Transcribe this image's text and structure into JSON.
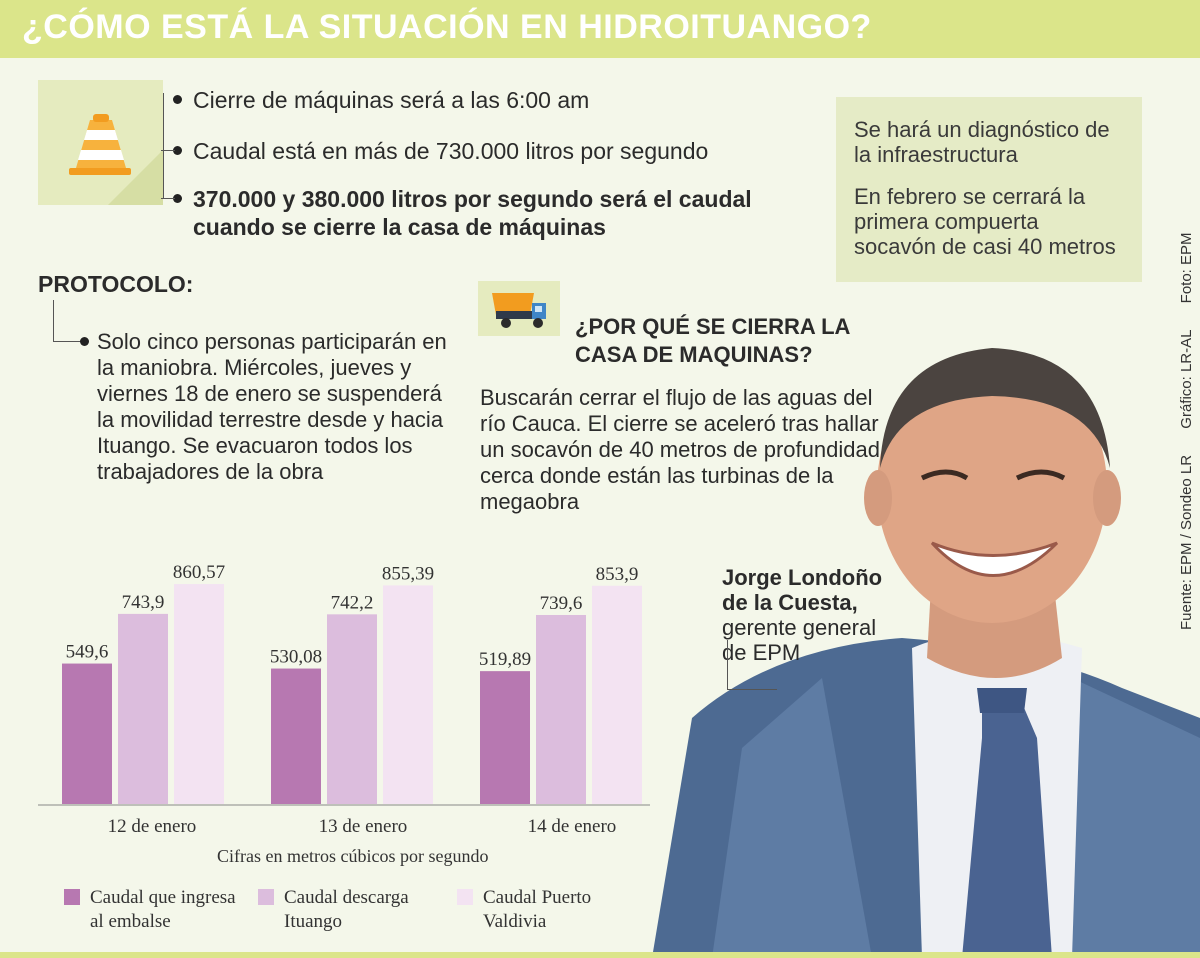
{
  "title": "¿CÓMO ESTÁ LA SITUACIÓN EN HIDROITUANGO?",
  "bullets": [
    "Cierre de máquinas será a las 6:00 am",
    "Caudal está en más de 730.000 litros por segundo",
    "370.000 y 380.000 litros por segundo será el caudal cuando se cierre la casa de máquinas"
  ],
  "note": {
    "p1": "Se hará un diagnóstico de la infraestructura",
    "p2": "En febrero se cerrará la primera compuerta socavón de casi 40 metros"
  },
  "protocol": {
    "title": "PROTOCOLO:",
    "text": "Solo cinco personas participarán en la maniobra. Miércoles, jueves y viernes 18 de enero se suspenderá la movilidad terrestre desde y hacia Ituango. Se evacuaron todos los trabajadores de la obra"
  },
  "why": {
    "title": "¿POR QUÉ SE CIERRA LA CASA DE MAQUINAS?",
    "text": "Buscarán cerrar el flujo de las aguas del río Cauca. El cierre se aceleró tras hallar un socavón de 40 metros de profundidad cerca donde están las turbinas de la megaobra"
  },
  "person": {
    "name_line1": "Jorge Londoño",
    "name_line2": "de la Cuesta,",
    "role_line1": "gerente general",
    "role_line2": "de EPM"
  },
  "credits": {
    "source": "Fuente: EPM / Sondeo LR",
    "graphic": "Gráfico: LR-AL",
    "photo": "Foto: EPM"
  },
  "colors": {
    "title_bar": "#dbe58a",
    "series1": "#b778b1",
    "series2": "#dcbddd",
    "series3": "#f3e3f2"
  },
  "icons": {
    "cone": "traffic-cone-icon",
    "truck": "dump-truck-icon"
  },
  "chart_data": {
    "type": "bar",
    "categories": [
      "12 de enero",
      "13 de enero",
      "14 de enero"
    ],
    "series": [
      {
        "name": "Caudal que ingresa al embalse",
        "values": [
          549.6,
          530.08,
          519.89
        ],
        "labels": [
          "549,6",
          "530,08",
          "519,89"
        ]
      },
      {
        "name": "Caudal descarga Ituango",
        "values": [
          743.9,
          742.2,
          739.6
        ],
        "labels": [
          "743,9",
          "742,2",
          "739,6"
        ]
      },
      {
        "name": "Caudal Puerto Valdivia",
        "values": [
          860.57,
          855.39,
          853.9
        ],
        "labels": [
          "860,57",
          "855,39",
          "853,9"
        ]
      }
    ],
    "note": "Cifras en metros cúbicos por segundo",
    "ylim": [
      0,
      900
    ],
    "grid": false
  }
}
